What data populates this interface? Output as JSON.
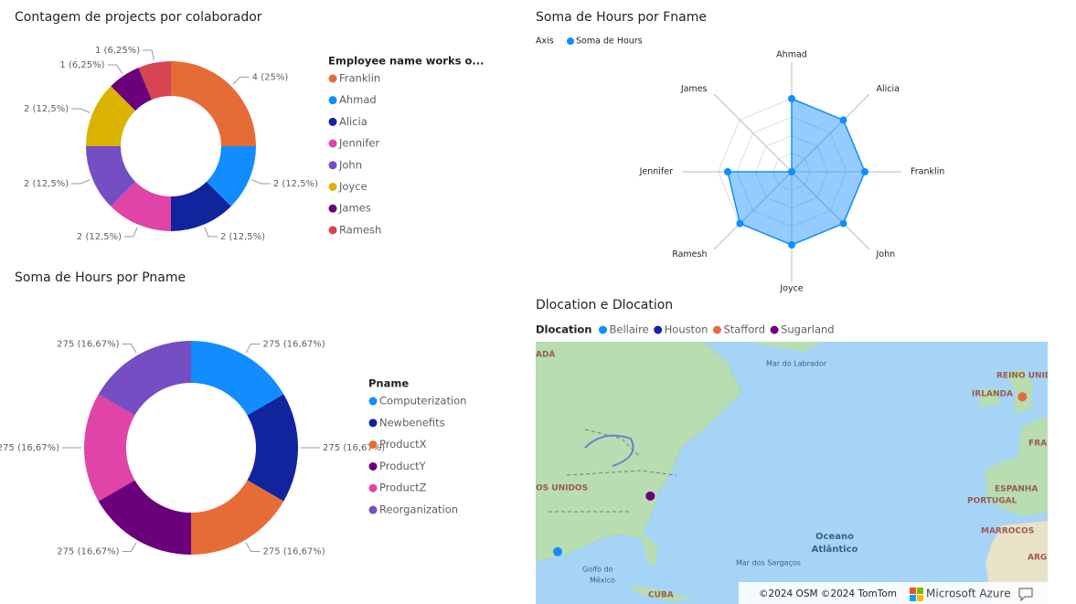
{
  "chart_data": [
    {
      "type": "donut",
      "title": "Contagem de projects por colaborador",
      "legend_title": "Employee name works o...",
      "categories": [
        "Franklin",
        "Ahmad",
        "Alicia",
        "Jennifer",
        "John",
        "Joyce",
        "James",
        "Ramesh"
      ],
      "values": [
        4,
        2,
        2,
        2,
        2,
        2,
        1,
        1
      ],
      "value_labels": [
        "4 (25%)",
        "2 (12,5%)",
        "2 (12,5%)",
        "2 (12,5%)",
        "2 (12,5%)",
        "2 (12,5%)",
        "1 (6,25%)",
        "1 (6,25%)"
      ],
      "colors": [
        "#E66C37",
        "#118DFF",
        "#12239E",
        "#E044A7",
        "#744EC2",
        "#D9B300",
        "#6B007B",
        "#D64550"
      ]
    },
    {
      "type": "radar",
      "title": "Soma de Hours por Fname",
      "legend_title": "Axis",
      "categories": [
        "Ahmad",
        "Alicia",
        "Franklin",
        "John",
        "Joyce",
        "Ramesh",
        "Jennifer",
        "James"
      ],
      "series": [
        {
          "name": "Soma de Hours",
          "color": "#118DFF",
          "values": [
            40,
            40,
            40,
            40,
            40,
            40,
            35,
            0
          ]
        }
      ],
      "ylim": [
        0,
        60
      ]
    },
    {
      "type": "donut",
      "title": "Soma de Hours por Pname",
      "legend_title": "Pname",
      "categories": [
        "Computerization",
        "Newbenefits",
        "ProductX",
        "ProductY",
        "ProductZ",
        "Reorganization"
      ],
      "values": [
        275,
        275,
        275,
        275,
        275,
        275
      ],
      "value_labels": [
        "275 (16,67%)",
        "275 (16,67%)",
        "275 (16,67%)",
        "275 (16,67%)",
        "275 (16,67%)",
        "275 (16,67%)"
      ],
      "colors": [
        "#118DFF",
        "#12239E",
        "#E66C37",
        "#6B007B",
        "#E044A7",
        "#744EC2"
      ]
    },
    {
      "type": "map",
      "title": "Dlocation e Dlocation",
      "legend_title": "Dlocation",
      "series": [
        {
          "name": "Bellaire",
          "color": "#118DFF",
          "lon": -95.5,
          "lat": 29.7
        },
        {
          "name": "Houston",
          "color": "#12239E",
          "lon": null,
          "lat": null
        },
        {
          "name": "Stafford",
          "color": "#E66C37",
          "lon": -0.2,
          "lat": 52.8
        },
        {
          "name": "Sugarland",
          "color": "#6B007B",
          "lon": -76.5,
          "lat": 38.0
        }
      ],
      "xlim": [
        -100,
        5
      ],
      "ylim": [
        21.9,
        61.0
      ],
      "place_labels": [
        "ADÁ",
        "Mar do Labrador",
        "REINO UNIDO",
        "IRLANDA",
        "FRA",
        "ESPANHA",
        "PORTUGAL",
        "MARROCOS",
        "ARG",
        "OS UNIDOS",
        "Oceano",
        "Atlântico",
        "Mar dos Sargaços",
        "Golfo do",
        "México",
        "CUBA"
      ],
      "attribution": [
        "©2024 OSM ©2024 TomTom",
        "Microsoft Azure"
      ]
    }
  ]
}
